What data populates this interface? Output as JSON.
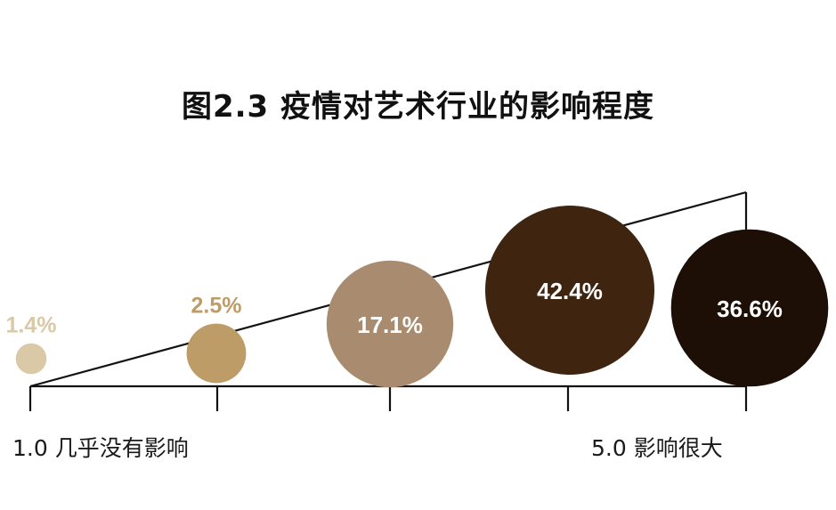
{
  "chart_data": {
    "type": "bubble",
    "title": "图2.3  疫情对艺术行业的影响程度",
    "categories": [
      "1",
      "2",
      "3",
      "4",
      "5"
    ],
    "values": [
      1.4,
      2.5,
      17.1,
      42.4,
      36.6
    ],
    "labels": [
      "1.4%",
      "2.5%",
      "17.1%",
      "42.4%",
      "36.6%"
    ],
    "colors": [
      "#d9c9a6",
      "#bd9c68",
      "#a98c70",
      "#3f2410",
      "#1e0f06"
    ],
    "label_inside": [
      false,
      false,
      true,
      true,
      true
    ],
    "axis_min_label": "1.0  几乎没有影响",
    "axis_max_label": "5.0  影响很大",
    "grid": false
  }
}
